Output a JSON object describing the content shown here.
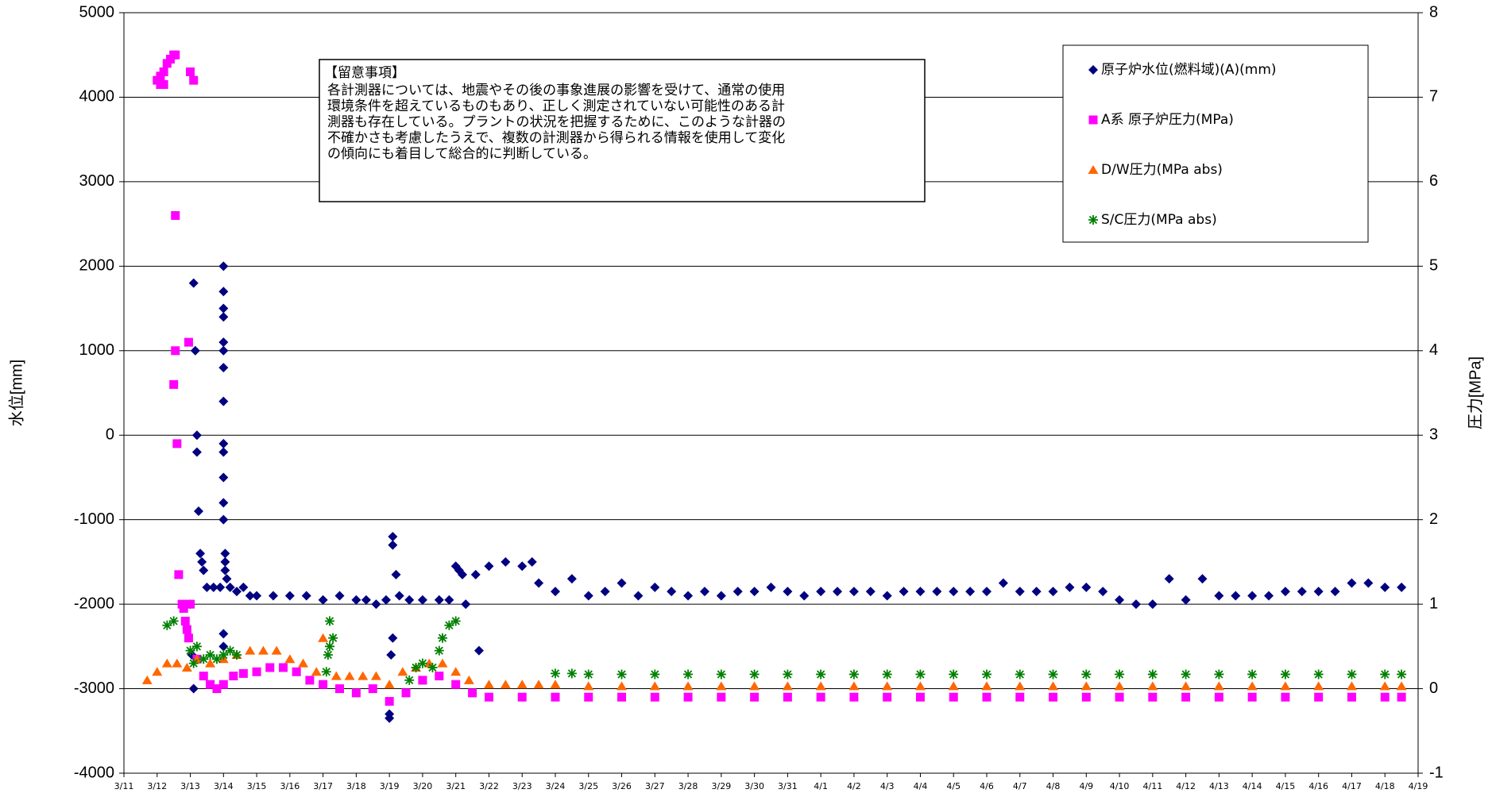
{
  "chart_data": {
    "type": "scatter",
    "ylabel": "水位[mm]",
    "y2label": "圧力[MPa]",
    "xlim": [
      0,
      39
    ],
    "xticks": [
      {
        "value": 0,
        "label": "3/11"
      },
      {
        "value": 1,
        "label": "3/12"
      },
      {
        "value": 2,
        "label": "3/13"
      },
      {
        "value": 3,
        "label": "3/14"
      },
      {
        "value": 4,
        "label": "3/15"
      },
      {
        "value": 5,
        "label": "3/16"
      },
      {
        "value": 6,
        "label": "3/17"
      },
      {
        "value": 7,
        "label": "3/18"
      },
      {
        "value": 8,
        "label": "3/19"
      },
      {
        "value": 9,
        "label": "3/20"
      },
      {
        "value": 10,
        "label": "3/21"
      },
      {
        "value": 11,
        "label": "3/22"
      },
      {
        "value": 12,
        "label": "3/23"
      },
      {
        "value": 13,
        "label": "3/24"
      },
      {
        "value": 14,
        "label": "3/25"
      },
      {
        "value": 15,
        "label": "3/26"
      },
      {
        "value": 16,
        "label": "3/27"
      },
      {
        "value": 17,
        "label": "3/28"
      },
      {
        "value": 18,
        "label": "3/29"
      },
      {
        "value": 19,
        "label": "3/30"
      },
      {
        "value": 20,
        "label": "3/31"
      },
      {
        "value": 21,
        "label": "4/1"
      },
      {
        "value": 22,
        "label": "4/2"
      },
      {
        "value": 23,
        "label": "4/3"
      },
      {
        "value": 24,
        "label": "4/4"
      },
      {
        "value": 25,
        "label": "4/5"
      },
      {
        "value": 26,
        "label": "4/6"
      },
      {
        "value": 27,
        "label": "4/7"
      },
      {
        "value": 28,
        "label": "4/8"
      },
      {
        "value": 29,
        "label": "4/9"
      },
      {
        "value": 30,
        "label": "4/10"
      },
      {
        "value": 31,
        "label": "4/11"
      },
      {
        "value": 32,
        "label": "4/12"
      },
      {
        "value": 33,
        "label": "4/13"
      },
      {
        "value": 34,
        "label": "4/14"
      },
      {
        "value": 35,
        "label": "4/15"
      },
      {
        "value": 36,
        "label": "4/16"
      },
      {
        "value": 37,
        "label": "4/17"
      },
      {
        "value": 38,
        "label": "4/18"
      },
      {
        "value": 39,
        "label": "4/19"
      }
    ],
    "ylim": [
      -4000,
      5000
    ],
    "yticks": [
      -4000,
      -3000,
      -2000,
      -1000,
      0,
      1000,
      2000,
      3000,
      4000,
      5000
    ],
    "y2lim": [
      -1,
      8
    ],
    "y2ticks": [
      -1,
      0,
      1,
      2,
      3,
      4,
      5,
      6,
      7,
      8
    ],
    "grid": true,
    "legend": "upper right",
    "annotation": {
      "title": "【留意事項】",
      "lines": [
        "各計測器については、地震やその後の事象進展の影響を受けて、通常の使用",
        "環境条件を超えているものもあり、正しく測定されていない可能性のある計",
        "測器も存在している。プラントの状況を把握するために、このような計器の",
        "不確かさも考慮したうえで、複数の計測器から得られる情報を使用して変化",
        "の傾向にも着目して総合的に判断している。"
      ]
    },
    "series": [
      {
        "name": "原子炉水位(燃料域)(A)(mm)",
        "color": "#000080",
        "marker": "diamond",
        "axis": "y",
        "x": [
          2.0,
          2.05,
          2.1,
          2.1,
          2.15,
          2.2,
          2.2,
          2.25,
          2.3,
          2.35,
          2.4,
          2.5,
          2.7,
          2.9,
          3.0,
          3.0,
          3.0,
          3.0,
          3.0,
          3.0,
          3.0,
          3.0,
          3.0,
          3.0,
          3.0,
          3.0,
          3.0,
          3.05,
          3.05,
          3.05,
          3.1,
          3.0,
          3.0,
          3.2,
          3.4,
          3.6,
          3.8,
          4.0,
          4.5,
          5.0,
          5.5,
          6.0,
          6.5,
          7.0,
          7.3,
          7.6,
          7.9,
          8.0,
          8.0,
          8.05,
          8.1,
          8.1,
          8.1,
          8.2,
          8.3,
          8.6,
          9.0,
          9.5,
          9.8,
          10.0,
          10.1,
          10.2,
          10.3,
          10.6,
          10.7,
          11.0,
          11.5,
          12.0,
          12.3,
          12.5,
          13.0,
          13.5,
          14.0,
          14.5,
          15.0,
          15.5,
          16.0,
          16.5,
          17.0,
          17.5,
          18.0,
          18.5,
          19.0,
          19.5,
          20.0,
          20.5,
          21.0,
          21.5,
          22.0,
          22.5,
          23.0,
          23.5,
          24.0,
          24.5,
          25.0,
          25.5,
          26.0,
          26.5,
          27.0,
          27.5,
          28.0,
          28.5,
          29.0,
          29.5,
          30.0,
          30.5,
          31.0,
          31.5,
          32.0,
          32.5,
          33.0,
          33.5,
          34.0,
          34.5,
          35.0,
          35.5,
          36.0,
          36.5,
          37.0,
          37.5,
          38.0,
          38.5
        ],
        "values": [
          -2000,
          -2600,
          -3000,
          1800,
          1000,
          0,
          -200,
          -900,
          -1400,
          -1500,
          -1600,
          -1800,
          -1800,
          -1800,
          2000,
          1700,
          1500,
          1400,
          1100,
          1000,
          800,
          400,
          -100,
          -200,
          -500,
          -800,
          -1000,
          -1400,
          -1500,
          -1600,
          -1700,
          -2500,
          -2350,
          -1800,
          -1850,
          -1800,
          -1900,
          -1900,
          -1900,
          -1900,
          -1900,
          -1950,
          -1900,
          -1950,
          -1950,
          -2000,
          -1950,
          -3350,
          -3300,
          -2600,
          -2400,
          -1200,
          -1300,
          -1650,
          -1900,
          -1950,
          -1950,
          -1950,
          -1950,
          -1550,
          -1600,
          -1650,
          -2000,
          -1650,
          -2550,
          -1550,
          -1500,
          -1550,
          -1500,
          -1750,
          -1850,
          -1700,
          -1900,
          -1850,
          -1750,
          -1900,
          -1800,
          -1850,
          -1900,
          -1850,
          -1900,
          -1850,
          -1850,
          -1800,
          -1850,
          -1900,
          -1850,
          -1850,
          -1850,
          -1850,
          -1900,
          -1850,
          -1850,
          -1850,
          -1850,
          -1850,
          -1850,
          -1750,
          -1850,
          -1850,
          -1850,
          -1800,
          -1800,
          -1850,
          -1950,
          -2000,
          -2000,
          -1700,
          -1950,
          -1700,
          -1900,
          -1900,
          -1900,
          -1900,
          -1850,
          -1850,
          -1850,
          -1850,
          -1750,
          -1750,
          -1800,
          -1800
        ]
      },
      {
        "name": "A系 原子炉圧力(MPa)",
        "color": "#ff00ff",
        "marker": "square",
        "axis": "y2",
        "x": [
          1.0,
          1.1,
          1.2,
          1.3,
          1.4,
          1.5,
          1.55,
          1.1,
          1.2,
          1.55,
          1.55,
          1.5,
          1.6,
          1.65,
          1.75,
          1.8,
          1.85,
          1.9,
          1.95,
          2.0,
          1.95,
          2.0,
          2.1,
          2.2,
          2.4,
          2.6,
          2.8,
          3.0,
          3.3,
          3.6,
          4.0,
          4.4,
          4.8,
          5.2,
          5.6,
          6.0,
          6.5,
          7.0,
          7.5,
          8.0,
          8.5,
          9.0,
          9.5,
          10.0,
          10.5,
          11,
          12,
          13,
          14,
          15,
          16,
          17,
          18,
          19,
          20,
          21,
          22,
          23,
          24,
          25,
          26,
          27,
          28,
          29,
          30,
          31,
          32,
          33,
          34,
          35,
          36,
          37,
          38,
          38.5
        ],
        "values": [
          7.2,
          7.25,
          7.3,
          7.4,
          7.45,
          7.5,
          7.5,
          7.15,
          7.15,
          5.6,
          4.0,
          3.6,
          2.9,
          1.35,
          1.0,
          0.95,
          0.8,
          0.7,
          0.6,
          1.0,
          4.1,
          7.3,
          7.2,
          0.35,
          0.15,
          0.05,
          0.0,
          0.05,
          0.15,
          0.18,
          0.2,
          0.25,
          0.25,
          0.2,
          0.1,
          0.05,
          0.0,
          -0.05,
          0.0,
          -0.15,
          -0.05,
          0.1,
          0.15,
          0.05,
          -0.05,
          -0.1,
          -0.1,
          -0.1,
          -0.1,
          -0.1,
          -0.1,
          -0.1,
          -0.1,
          -0.1,
          -0.1,
          -0.1,
          -0.1,
          -0.1,
          -0.1,
          -0.1,
          -0.1,
          -0.1,
          -0.1,
          -0.1,
          -0.1,
          -0.1,
          -0.1,
          -0.1,
          -0.1,
          -0.1,
          -0.1,
          -0.1,
          -0.1,
          -0.1
        ]
      },
      {
        "name": "D/W圧力(MPa abs)",
        "color": "#ff6600",
        "marker": "triangle",
        "axis": "y2",
        "x": [
          0.7,
          1.0,
          1.3,
          1.6,
          1.9,
          2.2,
          2.6,
          3.0,
          3.4,
          3.8,
          4.2,
          4.6,
          5.0,
          5.4,
          5.8,
          6.0,
          6.4,
          6.8,
          7.2,
          7.6,
          8.0,
          8.4,
          8.8,
          9.2,
          9.6,
          10.0,
          10.4,
          11,
          11.5,
          12,
          12.5,
          13,
          14,
          15,
          16,
          17,
          18,
          19,
          20,
          21,
          22,
          23,
          24,
          25,
          26,
          27,
          28,
          29,
          30,
          31,
          32,
          33,
          34,
          35,
          36,
          37,
          38,
          38.5
        ],
        "values": [
          0.1,
          0.2,
          0.3,
          0.3,
          0.25,
          0.35,
          0.3,
          0.35,
          0.4,
          0.45,
          0.45,
          0.45,
          0.35,
          0.3,
          0.2,
          0.6,
          0.15,
          0.15,
          0.15,
          0.15,
          0.05,
          0.2,
          0.25,
          0.3,
          0.3,
          0.2,
          0.1,
          0.05,
          0.05,
          0.05,
          0.05,
          0.05,
          0.03,
          0.03,
          0.03,
          0.03,
          0.03,
          0.03,
          0.03,
          0.03,
          0.03,
          0.03,
          0.03,
          0.03,
          0.03,
          0.03,
          0.03,
          0.03,
          0.03,
          0.03,
          0.03,
          0.03,
          0.03,
          0.03,
          0.03,
          0.03,
          0.03,
          0.03
        ]
      },
      {
        "name": "S/C圧力(MPa abs)",
        "color": "#008000",
        "marker": "asterisk",
        "axis": "y2",
        "x": [
          1.3,
          1.5,
          2.0,
          2.1,
          2.2,
          2.4,
          2.6,
          2.8,
          3.0,
          3.2,
          3.4,
          6.1,
          6.15,
          6.2,
          6.2,
          6.3,
          8.6,
          8.8,
          9.0,
          9.3,
          9.5,
          9.6,
          9.8,
          10.0,
          13.0,
          13.5,
          14,
          15,
          16,
          17,
          18,
          19,
          20,
          21,
          22,
          23,
          24,
          25,
          26,
          27,
          28,
          29,
          30,
          31,
          32,
          33,
          34,
          35,
          36,
          37,
          38,
          38.5
        ],
        "values": [
          0.75,
          0.8,
          0.45,
          0.3,
          0.5,
          0.35,
          0.4,
          0.35,
          0.4,
          0.45,
          0.4,
          0.2,
          0.4,
          0.5,
          0.8,
          0.6,
          0.1,
          0.25,
          0.3,
          0.25,
          0.45,
          0.6,
          0.75,
          0.8,
          0.18,
          0.18,
          0.17,
          0.17,
          0.17,
          0.17,
          0.17,
          0.17,
          0.17,
          0.17,
          0.17,
          0.17,
          0.17,
          0.17,
          0.17,
          0.17,
          0.17,
          0.17,
          0.17,
          0.17,
          0.17,
          0.17,
          0.17,
          0.17,
          0.17,
          0.17,
          0.17,
          0.17
        ]
      }
    ]
  }
}
